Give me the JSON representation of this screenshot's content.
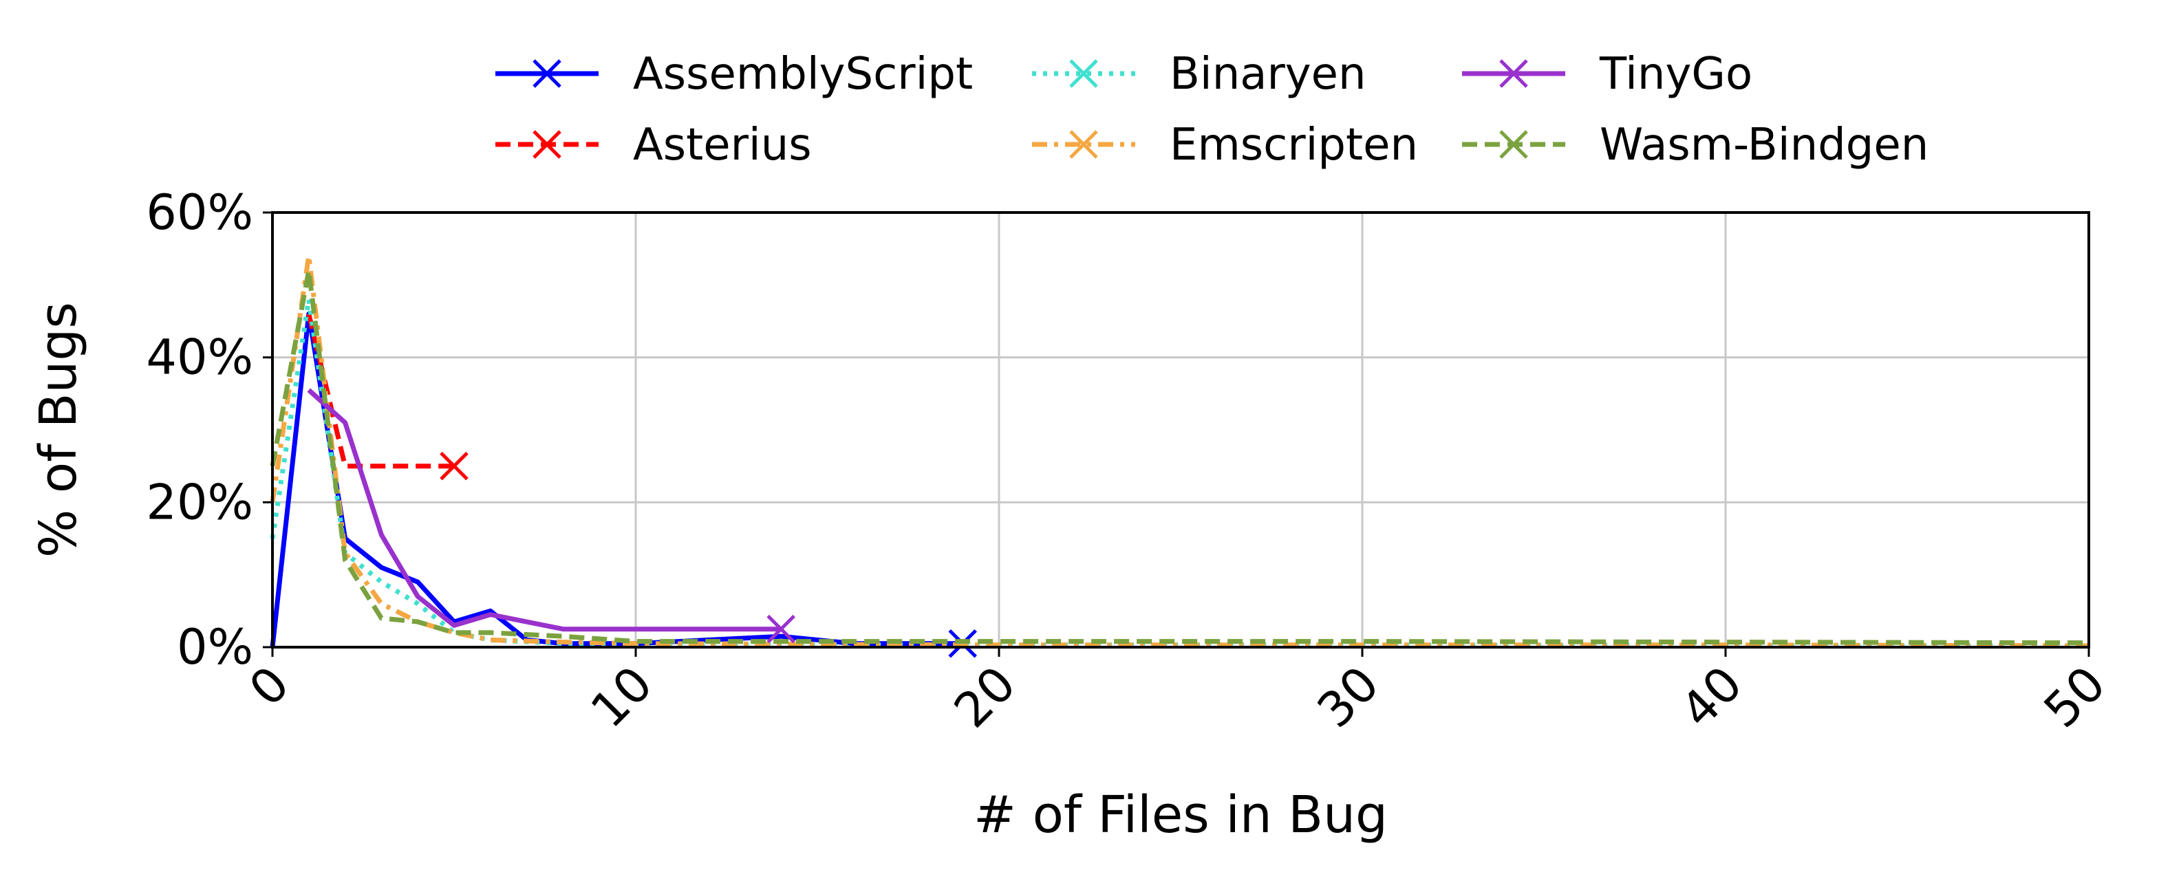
{
  "chart_data": {
    "type": "line",
    "title": "",
    "xlabel": "# of Files in Bug",
    "ylabel": "% of Bugs",
    "xlim": [
      0,
      50
    ],
    "ylim": [
      0,
      60
    ],
    "xticks": [
      "0",
      "10",
      "20",
      "30",
      "40",
      "50"
    ],
    "yticks": [
      "0%",
      "20%",
      "40%",
      "60%"
    ],
    "grid": true,
    "legend_position": "top-center",
    "series": [
      {
        "name": "AssemblyScript",
        "color": "#0000ff",
        "dash": "solid",
        "x": [
          0,
          1,
          2,
          3,
          4,
          5,
          6,
          7,
          8,
          10,
          12,
          14,
          16,
          19
        ],
        "y": [
          0,
          46,
          15,
          11,
          9,
          3.5,
          5,
          1,
          0.5,
          0.5,
          1,
          1.5,
          0.5,
          0.5
        ]
      },
      {
        "name": "Asterius",
        "color": "#ff0000",
        "dash": "dashed",
        "x": [
          1,
          2,
          5
        ],
        "y": [
          46,
          25,
          25
        ]
      },
      {
        "name": "Binaryen",
        "color": "#40e0d0",
        "dash": "dotted",
        "x": [
          0,
          1,
          2,
          3,
          4,
          5,
          6,
          8,
          10,
          15,
          20,
          30,
          40,
          50
        ],
        "y": [
          15,
          48,
          13,
          9,
          6,
          2,
          1,
          0.5,
          0.5,
          0.3,
          0.3,
          0.3,
          0.2,
          0.2
        ]
      },
      {
        "name": "Emscripten",
        "color": "#f4a742",
        "dash": "dashdot",
        "x": [
          0,
          1,
          2,
          3,
          4,
          5,
          6,
          8,
          10,
          15,
          20,
          30,
          40,
          50
        ],
        "y": [
          20,
          54,
          13,
          6,
          3.5,
          2,
          1,
          0.7,
          0.5,
          0.4,
          0.3,
          0.3,
          0.3,
          0.2
        ]
      },
      {
        "name": "TinyGo",
        "color": "#9932cc",
        "dash": "solid",
        "x": [
          1,
          2,
          3,
          4,
          5,
          6,
          8,
          10,
          14
        ],
        "y": [
          35.5,
          31,
          15.5,
          7,
          3,
          4.5,
          2.5,
          2.5,
          2.5
        ]
      },
      {
        "name": "Wasm-Bindgen",
        "color": "#7ba23f",
        "dash": "dashed",
        "x": [
          0,
          1,
          2,
          3,
          4,
          5,
          6,
          8,
          10,
          15,
          20,
          30,
          40,
          50
        ],
        "y": [
          25,
          52,
          12,
          4,
          3.5,
          2,
          2,
          1.5,
          0.8,
          0.8,
          0.8,
          0.8,
          0.7,
          0.6
        ]
      }
    ]
  }
}
